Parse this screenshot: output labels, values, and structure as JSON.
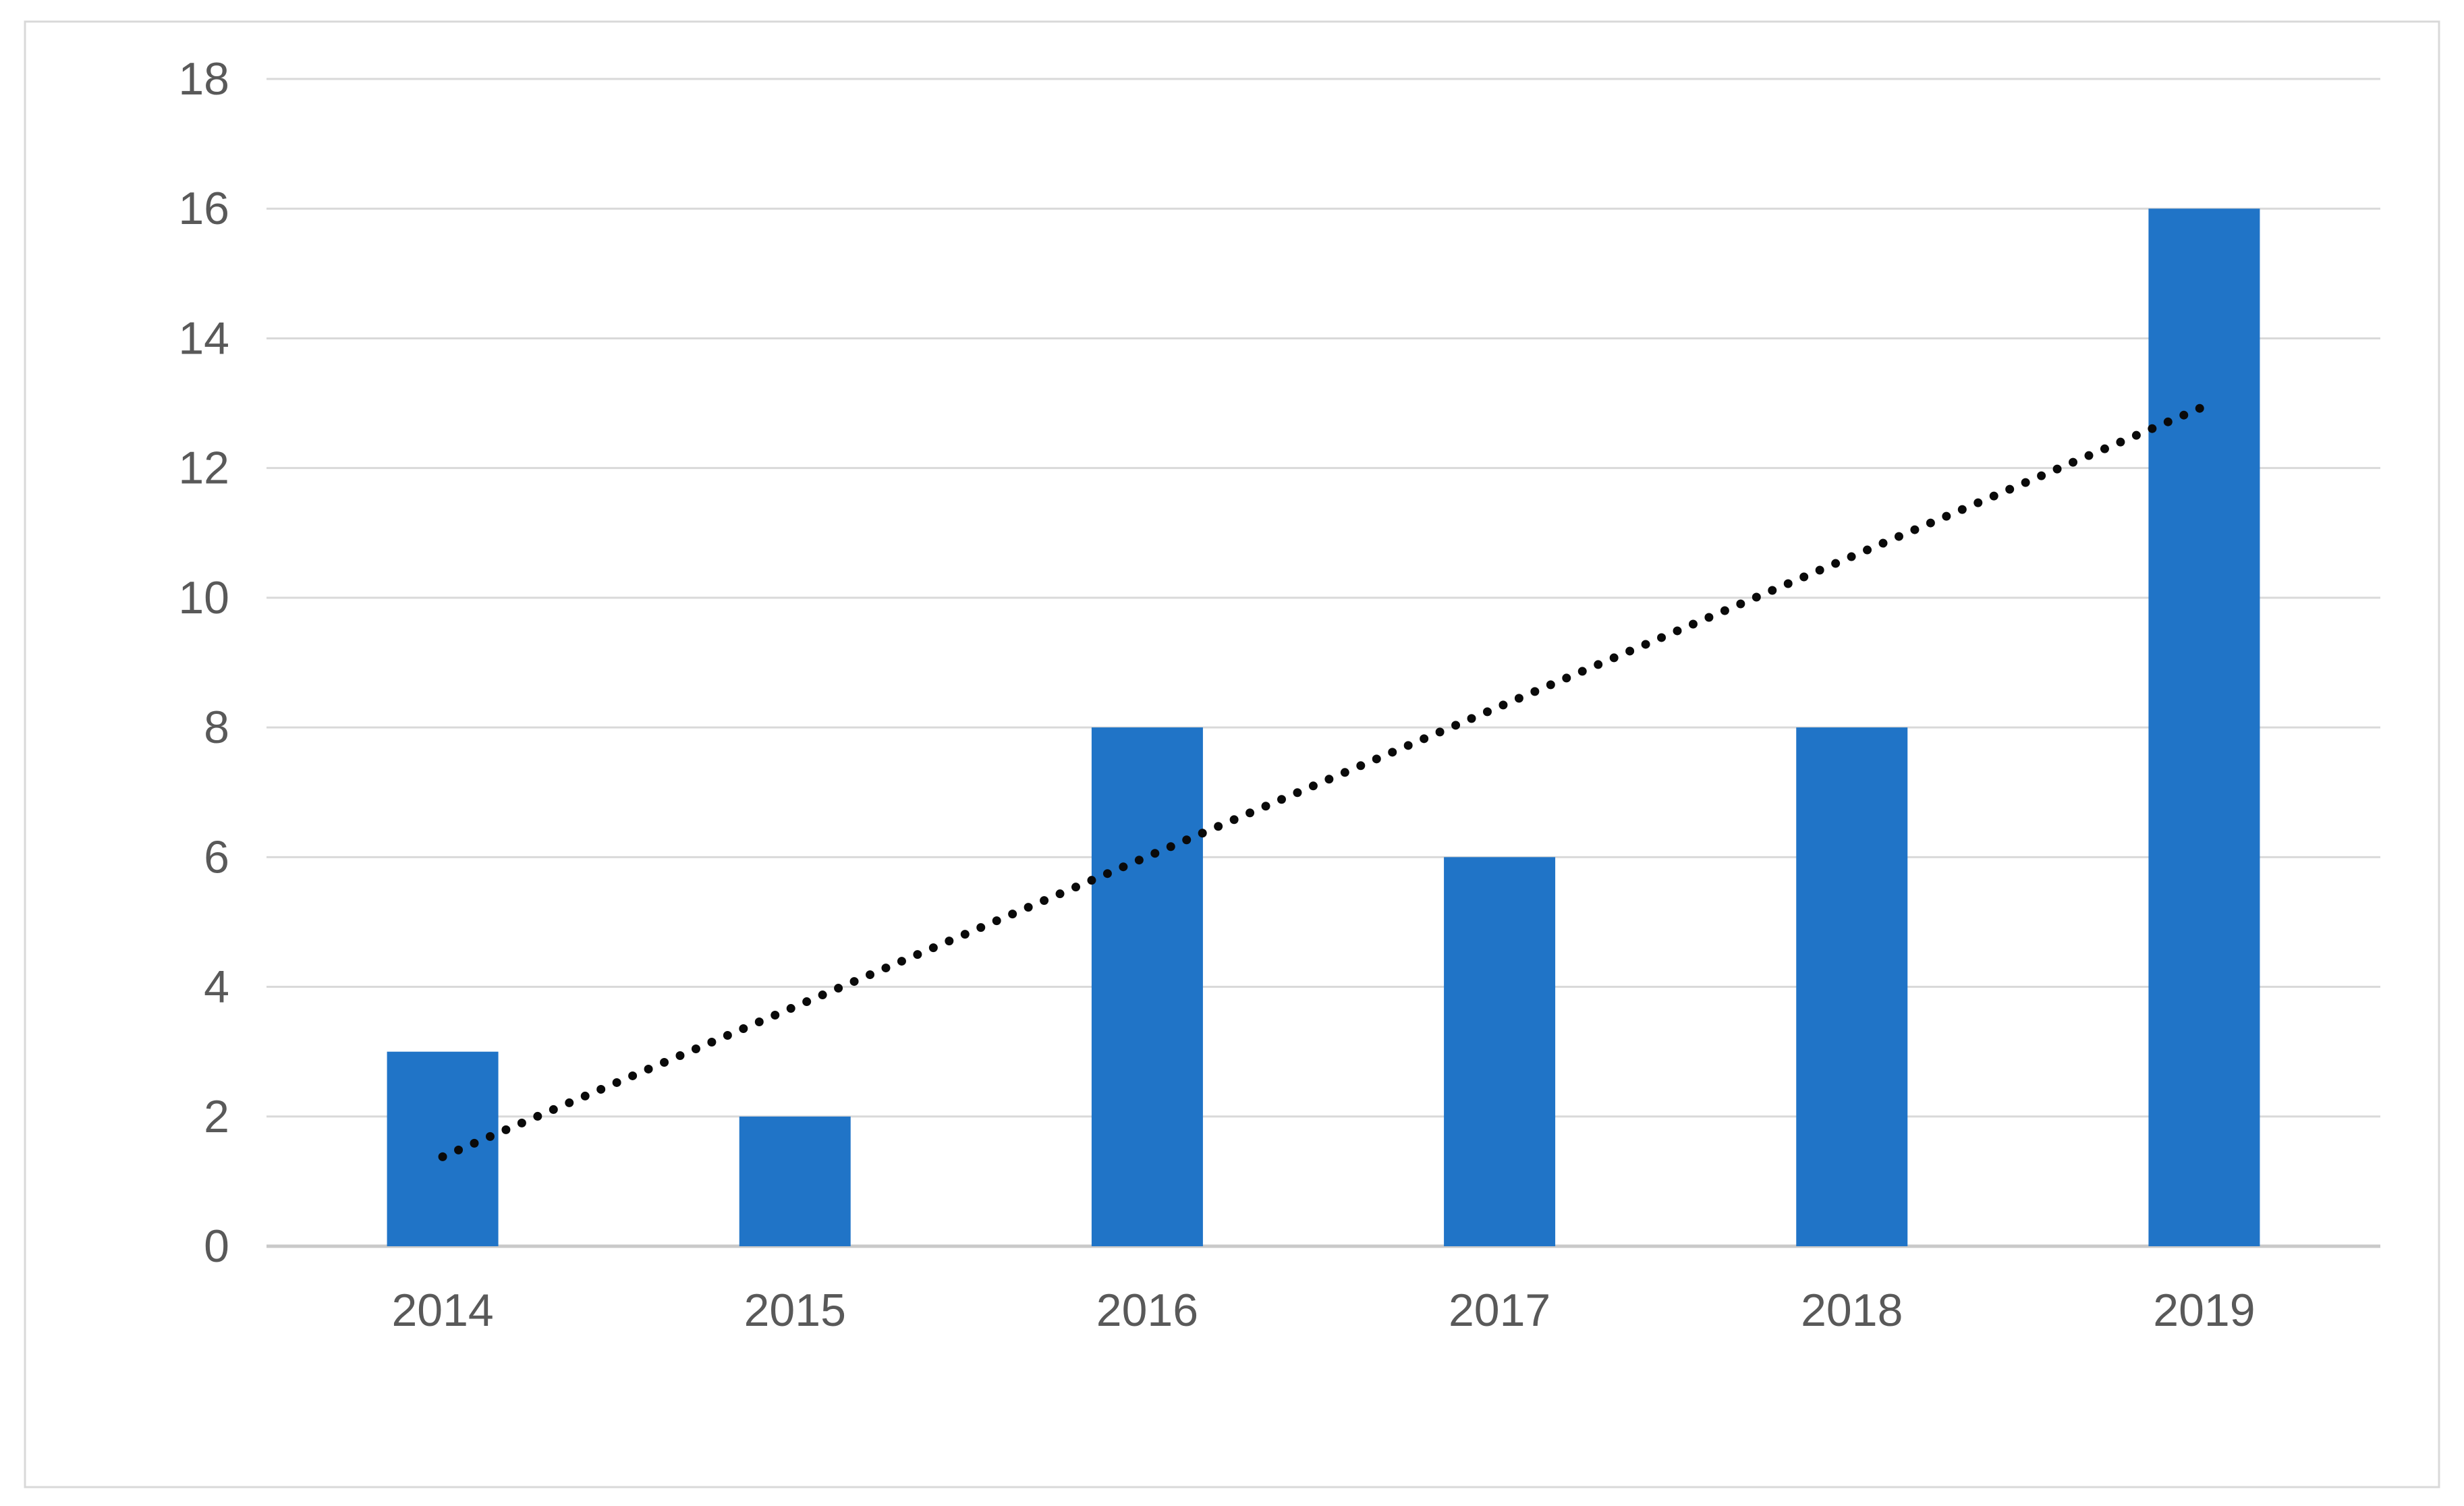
{
  "chart_data": {
    "type": "bar",
    "title": "",
    "xlabel": "",
    "ylabel": "",
    "categories": [
      "2014",
      "2015",
      "2016",
      "2017",
      "2018",
      "2019"
    ],
    "series": [
      {
        "name": "value",
        "values": [
          3,
          2,
          8,
          6,
          8,
          16
        ]
      }
    ],
    "ylim": [
      0,
      18
    ],
    "yticks": [
      0,
      2,
      4,
      6,
      8,
      10,
      12,
      14,
      16,
      18
    ],
    "grid": "horizontal",
    "legend_position": "none",
    "trendline": {
      "type": "linear",
      "style": "dotted",
      "start_category": "2014",
      "start_value": 1.38,
      "end_category": "2019",
      "end_value": 12.95
    },
    "colors": {
      "bar": "#2074C7",
      "gridline": "#D9D9D9",
      "axis_line": "#C9C9C9",
      "tick_label": "#595959",
      "trendline": "#0A0A0A",
      "background": "#FFFFFF",
      "frame_border": "#D9D9D9"
    }
  }
}
